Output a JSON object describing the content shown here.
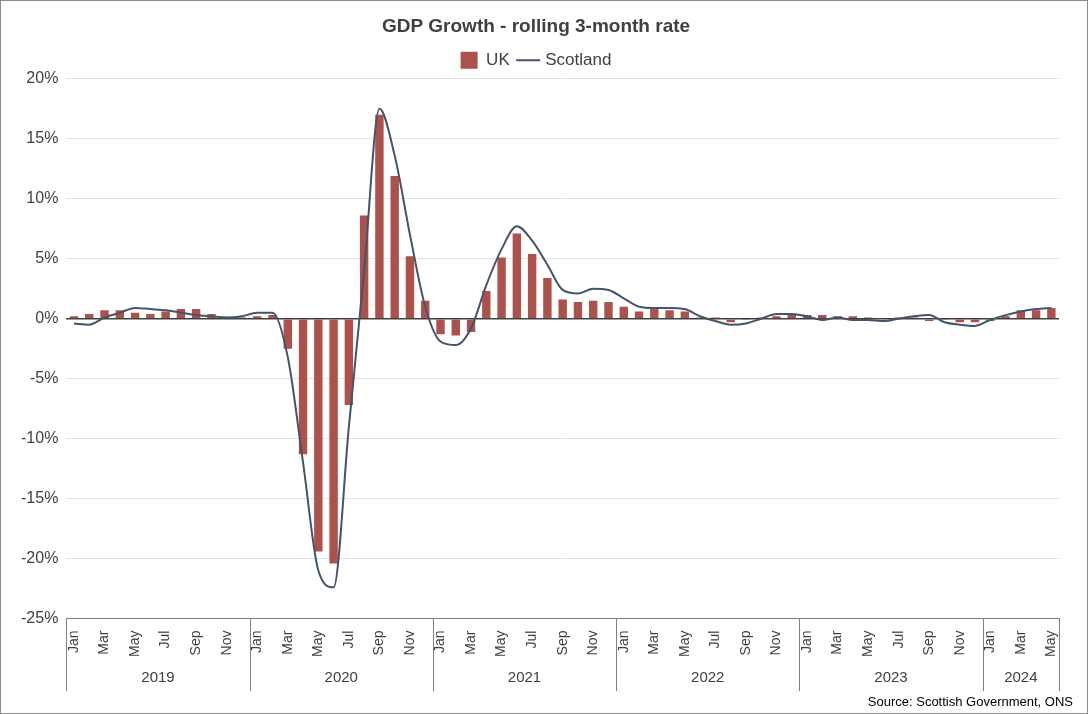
{
  "chart_data": {
    "type": "bar",
    "title": "GDP Growth - rolling 3-month rate",
    "source": "Source: Scottish Government, ONS",
    "categories": [
      "Jan",
      null,
      "Mar",
      null,
      "May",
      null,
      "Jul",
      null,
      "Sep",
      null,
      "Nov",
      null,
      "Jan",
      null,
      "Mar",
      null,
      "May",
      null,
      "Jul",
      null,
      "Sep",
      null,
      "Nov",
      null,
      "Jan",
      null,
      "Mar",
      null,
      "May",
      null,
      "Jul",
      null,
      "Sep",
      null,
      "Nov",
      null,
      "Jan",
      null,
      "Mar",
      null,
      "May",
      null,
      "Jul",
      null,
      "Sep",
      null,
      "Nov",
      null,
      "Jan",
      null,
      "Mar",
      null,
      "May",
      null,
      "Jul",
      null,
      "Sep",
      null,
      "Nov",
      null,
      "Jan",
      null,
      "Mar",
      null,
      "May"
    ],
    "category_groups": [
      {
        "label": "2019",
        "count": 12
      },
      {
        "label": "2020",
        "count": 12
      },
      {
        "label": "2021",
        "count": 12
      },
      {
        "label": "2022",
        "count": 12
      },
      {
        "label": "2023",
        "count": 12
      },
      {
        "label": "2024",
        "count": 5
      }
    ],
    "series": [
      {
        "name": "UK",
        "type": "bar",
        "color": "#ad514d",
        "values": [
          0.2,
          0.4,
          0.7,
          0.7,
          0.5,
          0.4,
          0.6,
          0.8,
          0.8,
          0.4,
          0.1,
          0.1,
          0.2,
          0.3,
          -2.5,
          -11.3,
          -19.4,
          -20.4,
          -7.2,
          8.6,
          17.0,
          11.9,
          5.2,
          1.5,
          -1.3,
          -1.4,
          -1.1,
          2.3,
          5.1,
          7.1,
          5.4,
          3.4,
          1.6,
          1.4,
          1.5,
          1.4,
          1.0,
          0.6,
          0.8,
          0.7,
          0.6,
          0.1,
          0.1,
          -0.3,
          -0.1,
          0.1,
          0.2,
          0.3,
          0.3,
          0.3,
          0.2,
          0.2,
          0.1,
          0.0,
          0.1,
          0.1,
          -0.2,
          -0.1,
          -0.3,
          -0.3,
          -0.2,
          0.2,
          0.7,
          0.7,
          0.9
        ]
      },
      {
        "name": "Scotland",
        "type": "line",
        "color": "#44546a",
        "marker": "none",
        "line_style": "solid",
        "values": [
          -0.4,
          -0.5,
          0.1,
          0.5,
          0.9,
          0.8,
          0.7,
          0.5,
          0.3,
          0.2,
          0.1,
          0.2,
          0.5,
          0.5,
          -3.2,
          -12.0,
          -21.0,
          -22.4,
          -9.0,
          4.0,
          17.5,
          13.6,
          7.0,
          1.0,
          -1.9,
          -2.2,
          -0.8,
          2.8,
          5.8,
          7.7,
          6.5,
          4.5,
          2.4,
          2.1,
          2.5,
          2.4,
          1.7,
          1.0,
          0.9,
          0.9,
          0.8,
          0.2,
          -0.2,
          -0.5,
          -0.4,
          0.0,
          0.4,
          0.4,
          0.2,
          -0.1,
          0.1,
          -0.1,
          -0.1,
          -0.2,
          0.0,
          0.2,
          0.3,
          -0.3,
          -0.5,
          -0.6,
          -0.1,
          0.3,
          0.6,
          0.8,
          0.9
        ]
      }
    ],
    "ylim": [
      -25,
      20
    ],
    "yticks": [
      {
        "value": -25,
        "label": "-25%"
      },
      {
        "value": -20,
        "label": "-20%"
      },
      {
        "value": -15,
        "label": "-15%"
      },
      {
        "value": -10,
        "label": "-10%"
      },
      {
        "value": -5,
        "label": "-5%"
      },
      {
        "value": 0,
        "label": "0%"
      },
      {
        "value": 5,
        "label": "5%"
      },
      {
        "value": 10,
        "label": "10%"
      },
      {
        "value": 15,
        "label": "15%"
      },
      {
        "value": 20,
        "label": "20%"
      }
    ],
    "grid": true,
    "legend": "top"
  }
}
